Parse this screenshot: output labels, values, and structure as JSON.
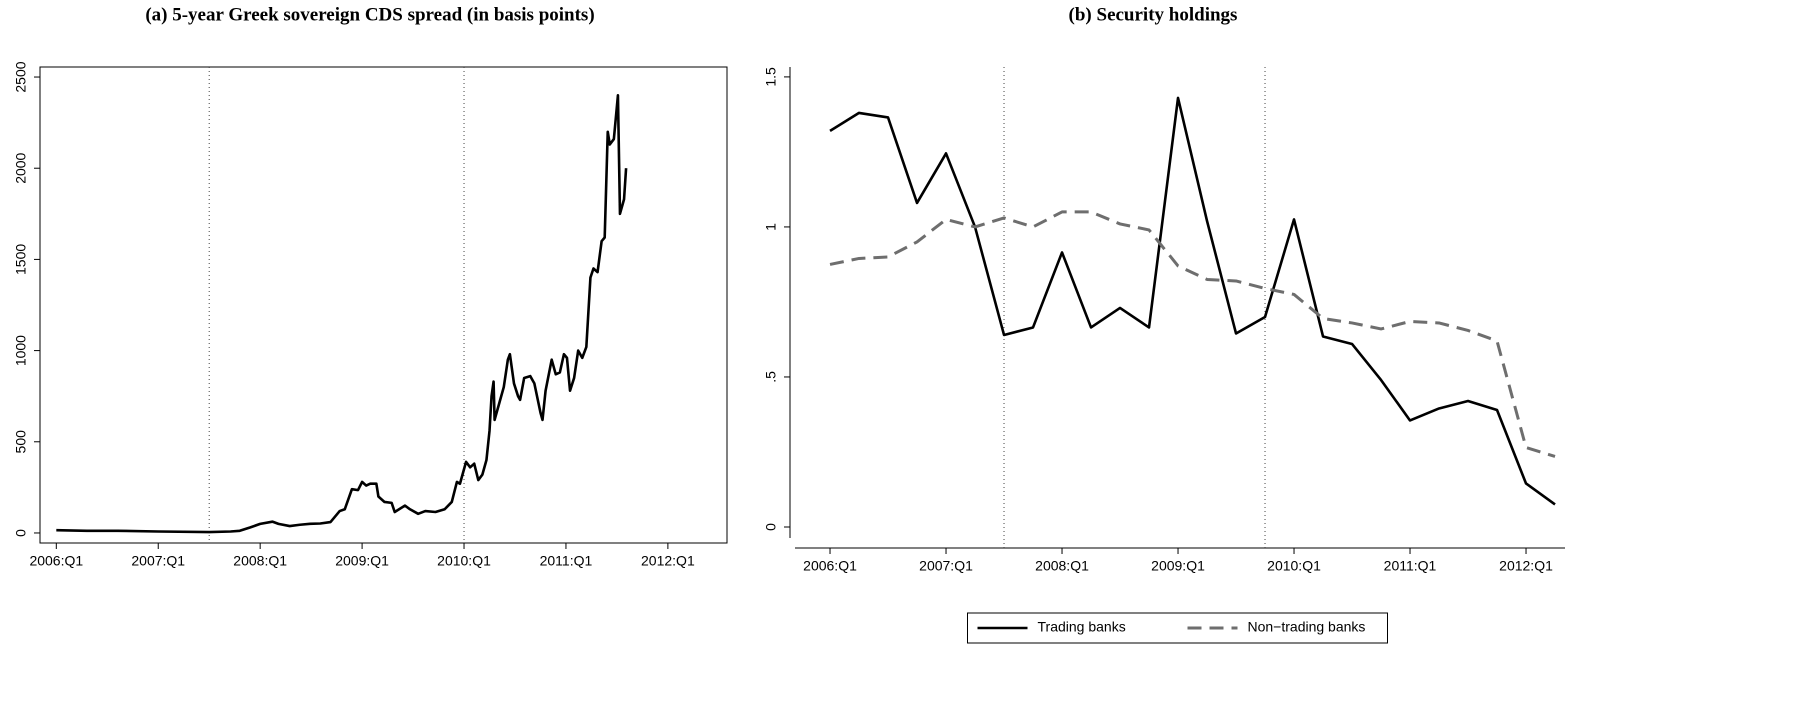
{
  "chart_data": [
    {
      "type": "line",
      "title": "(a) 5-year Greek sovereign CDS spread (in basis points)",
      "x": [
        2006.0,
        2006.3,
        2006.6,
        2007.0,
        2007.5,
        2007.71,
        2007.8,
        2007.9,
        2008.0,
        2008.12,
        2008.18,
        2008.29,
        2008.39,
        2008.49,
        2008.59,
        2008.69,
        2008.78,
        2008.83,
        2008.9,
        2008.96,
        2009.0,
        2009.04,
        2009.08,
        2009.14,
        2009.16,
        2009.22,
        2009.29,
        2009.32,
        2009.42,
        2009.47,
        2009.55,
        2009.62,
        2009.72,
        2009.81,
        2009.88,
        2009.93,
        2009.96,
        2010.02,
        2010.06,
        2010.1,
        2010.14,
        2010.18,
        2010.22,
        2010.25,
        2010.27,
        2010.29,
        2010.3,
        2010.35,
        2010.39,
        2010.43,
        2010.45,
        2010.49,
        2010.53,
        2010.55,
        2010.59,
        2010.65,
        2010.69,
        2010.75,
        2010.77,
        2010.8,
        2010.86,
        2010.9,
        2010.94,
        2010.98,
        2011.01,
        2011.04,
        2011.08,
        2011.12,
        2011.16,
        2011.2,
        2011.24,
        2011.27,
        2011.31,
        2011.35,
        2011.38,
        2011.41,
        2011.43,
        2011.47,
        2011.51,
        2011.53,
        2011.57,
        2011.59
      ],
      "values": [
        15,
        12,
        12,
        8,
        5,
        8,
        12,
        30,
        50,
        62,
        50,
        38,
        45,
        50,
        52,
        60,
        120,
        130,
        240,
        235,
        280,
        260,
        270,
        270,
        200,
        170,
        165,
        115,
        150,
        130,
        105,
        120,
        115,
        130,
        170,
        280,
        270,
        390,
        360,
        380,
        290,
        320,
        400,
        560,
        750,
        830,
        620,
        720,
        800,
        950,
        980,
        820,
        750,
        730,
        850,
        860,
        820,
        660,
        620,
        780,
        950,
        870,
        880,
        980,
        960,
        780,
        850,
        1000,
        960,
        1020,
        1400,
        1450,
        1430,
        1600,
        1620,
        2200,
        2130,
        2160,
        2400,
        1750,
        1830,
        2000
      ],
      "color": "#000000",
      "xlim": [
        2005.84,
        2012.58
      ],
      "ylim": [
        -55,
        2555
      ],
      "xticks": [
        {
          "value": 2006,
          "label": "2006:Q1"
        },
        {
          "value": 2007,
          "label": "2007:Q1"
        },
        {
          "value": 2008,
          "label": "2008:Q1"
        },
        {
          "value": 2009,
          "label": "2009:Q1"
        },
        {
          "value": 2010,
          "label": "2010:Q1"
        },
        {
          "value": 2011,
          "label": "2011:Q1"
        },
        {
          "value": 2012,
          "label": "2012:Q1"
        }
      ],
      "yticks": [
        0,
        500,
        1000,
        1500,
        2000,
        2500
      ],
      "vlines": [
        2007.5,
        2010.0
      ],
      "frame": "box"
    },
    {
      "type": "line",
      "title": "(b) Security holdings",
      "x": [
        2006.0,
        2006.25,
        2006.5,
        2006.75,
        2007.0,
        2007.25,
        2007.5,
        2007.75,
        2008.0,
        2008.25,
        2008.5,
        2008.75,
        2009.0,
        2009.25,
        2009.5,
        2009.75,
        2010.0,
        2010.25,
        2010.5,
        2010.75,
        2011.0,
        2011.25,
        2011.5,
        2011.75,
        2012.0,
        2012.25
      ],
      "series": [
        {
          "name": "Trading banks",
          "color": "#000000",
          "style": "solid",
          "values": [
            1.32,
            1.38,
            1.365,
            1.08,
            1.245,
            1.0,
            0.64,
            0.665,
            0.915,
            0.665,
            0.73,
            0.665,
            1.43,
            1.02,
            0.645,
            0.7,
            1.025,
            0.635,
            0.61,
            0.49,
            0.355,
            0.395,
            0.42,
            0.39,
            0.145,
            0.075
          ]
        },
        {
          "name": "Non−trading banks",
          "color": "#6e6e6e",
          "style": "dashed",
          "values": [
            0.875,
            0.895,
            0.9,
            0.95,
            1.025,
            1.0,
            1.03,
            1.0,
            1.05,
            1.05,
            1.01,
            0.99,
            0.87,
            0.825,
            0.82,
            0.795,
            0.775,
            0.695,
            0.68,
            0.66,
            0.685,
            0.68,
            0.655,
            0.62,
            0.265,
            0.235
          ]
        }
      ],
      "xlim": [
        2005.655,
        2012.336
      ],
      "ylim": [
        -0.07,
        1.533
      ],
      "xticks": [
        {
          "value": 2006,
          "label": "2006:Q1"
        },
        {
          "value": 2007,
          "label": "2007:Q1"
        },
        {
          "value": 2008,
          "label": "2008:Q1"
        },
        {
          "value": 2009,
          "label": "2009:Q1"
        },
        {
          "value": 2010,
          "label": "2010:Q1"
        },
        {
          "value": 2011,
          "label": "2011:Q1"
        },
        {
          "value": 2012,
          "label": "2012:Q1"
        }
      ],
      "yticks": [
        0,
        {
          "value": 0.5,
          "label": ".5"
        },
        1,
        1.5
      ],
      "vlines": [
        2007.5,
        2009.75
      ],
      "frame": "axes",
      "legend": "bottom"
    }
  ]
}
